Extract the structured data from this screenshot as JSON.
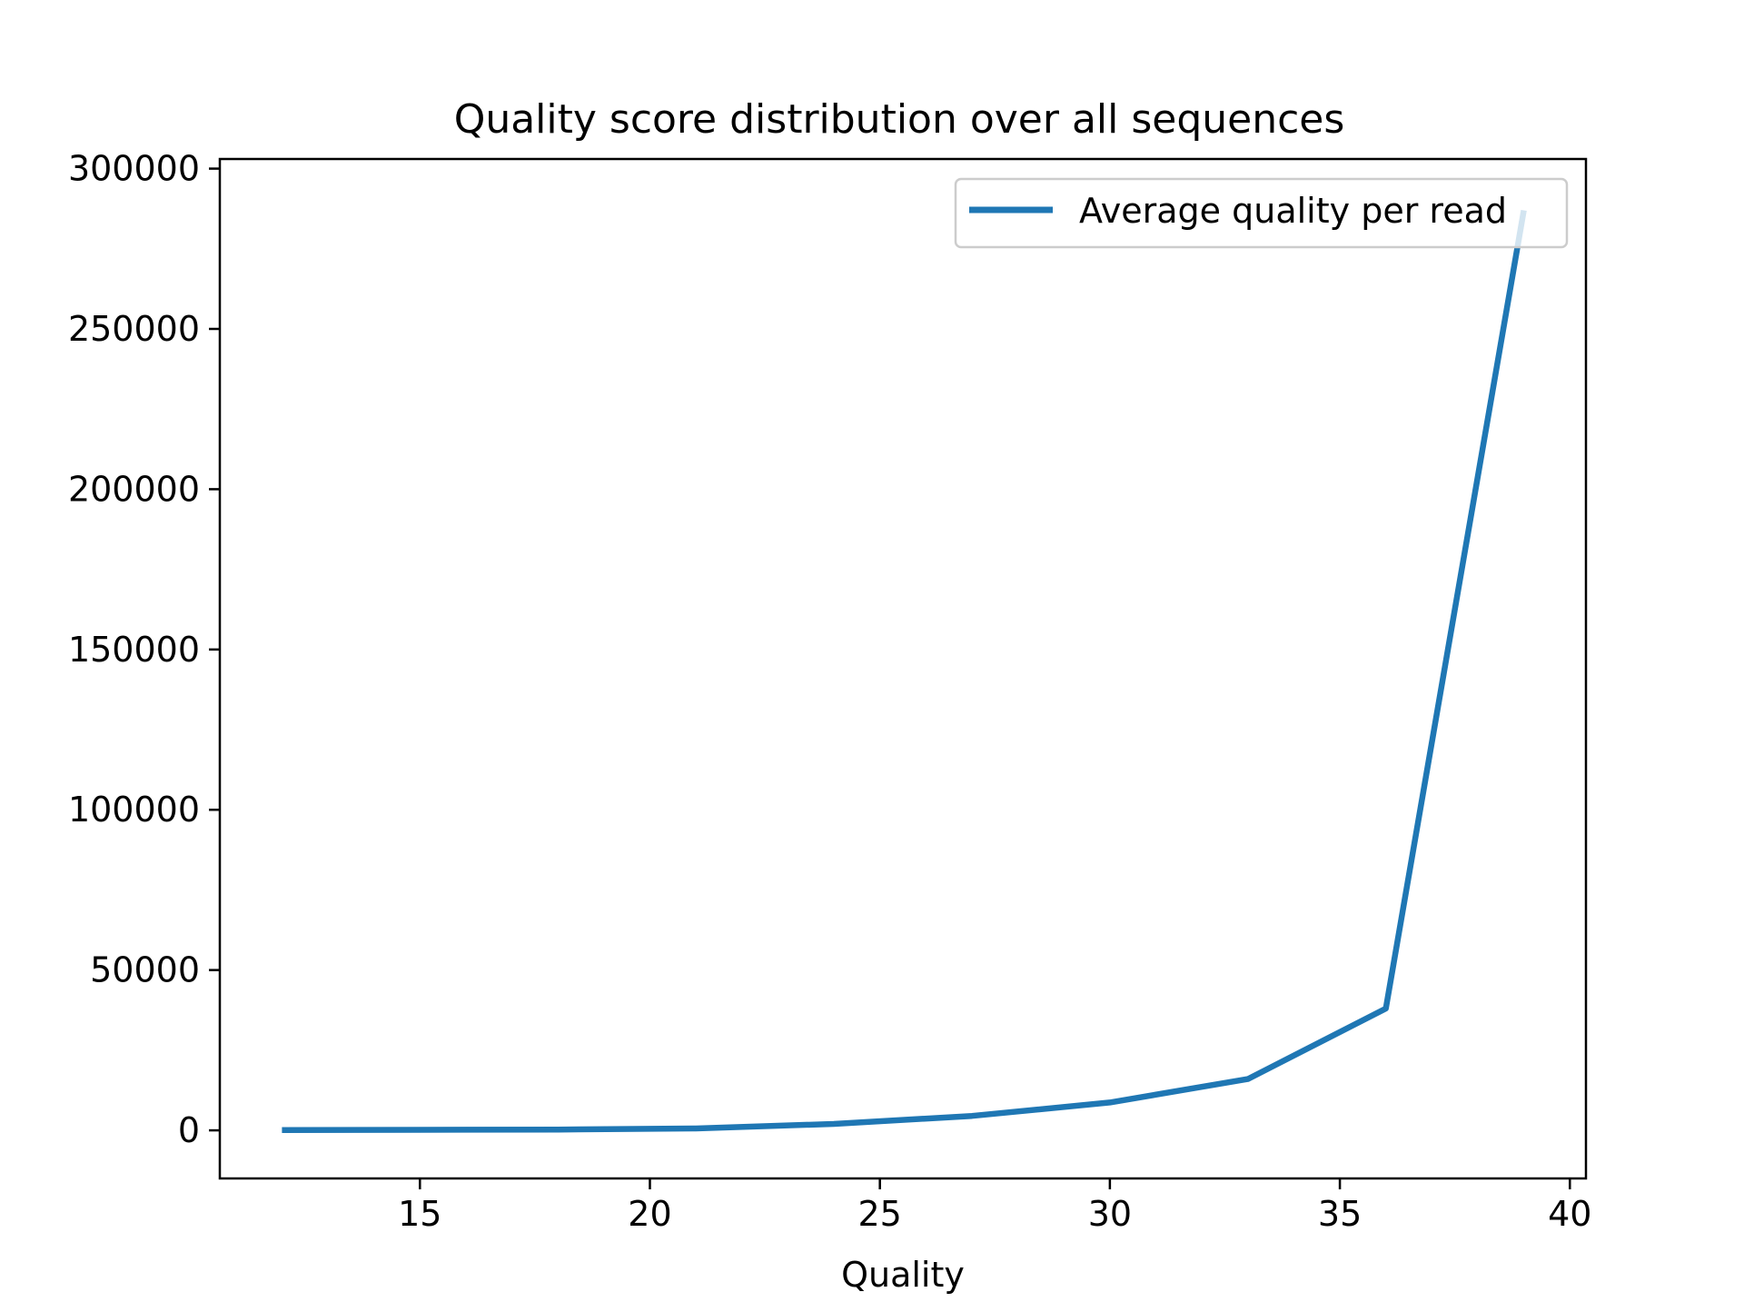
{
  "chart_data": {
    "type": "line",
    "title": "Quality score distribution over all sequences",
    "xlabel": "Quality",
    "ylabel": "",
    "xlim": [
      10.65,
      40.35
    ],
    "ylim": [
      -15000,
      303000
    ],
    "xticks": [
      15,
      20,
      25,
      30,
      35,
      40
    ],
    "yticks": [
      0,
      50000,
      100000,
      150000,
      200000,
      250000,
      300000
    ],
    "grid": false,
    "legend_position": "top-right",
    "series": [
      {
        "name": "Average quality per read",
        "color": "#1f77b4",
        "x": [
          12,
          15,
          18,
          21,
          24,
          27,
          30,
          33,
          36,
          39
        ],
        "y": [
          100,
          150,
          250,
          600,
          2000,
          4500,
          8700,
          16000,
          38000,
          287000
        ]
      }
    ]
  }
}
